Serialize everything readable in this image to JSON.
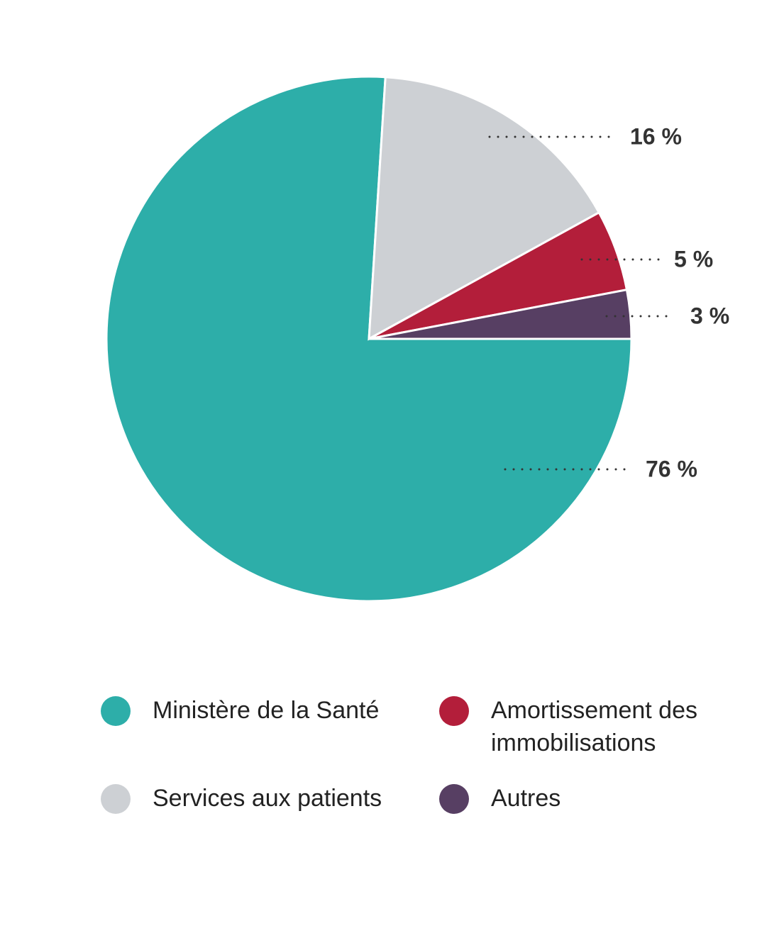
{
  "chart_data": {
    "type": "pie",
    "categories": [
      "Ministère de la Santé",
      "Services aux patients",
      "Amortissement des immobilisations",
      "Autres"
    ],
    "values": [
      76,
      16,
      5,
      3
    ],
    "value_labels": [
      "76 %",
      "16 %",
      "5 %",
      "3 %"
    ],
    "colors": [
      "#2daea9",
      "#cdd0d4",
      "#b31e3a",
      "#573f63"
    ]
  }
}
